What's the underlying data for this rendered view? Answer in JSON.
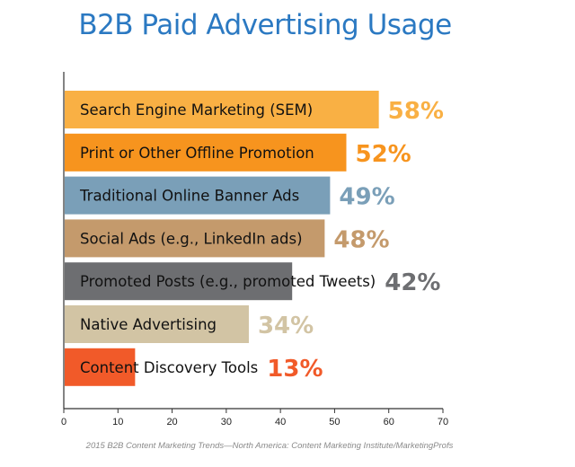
{
  "chart_data": {
    "type": "bar",
    "orientation": "horizontal",
    "title": "B2B Paid Advertising Usage",
    "categories": [
      "Search Engine Marketing (SEM)",
      "Print or Other Offline Promotion",
      "Traditional Online Banner Ads",
      "Social Ads (e.g., LinkedIn ads)",
      "Promoted Posts (e.g., promoted Tweets)",
      "Native Advertising",
      "Content Discovery Tools"
    ],
    "values": [
      58,
      52,
      49,
      48,
      42,
      34,
      13
    ],
    "value_labels": [
      "58%",
      "52%",
      "49%",
      "48%",
      "42%",
      "34%",
      "13%"
    ],
    "colors": [
      "#f9b044",
      "#f7941e",
      "#7a9fb8",
      "#c49a6c",
      "#6d6e71",
      "#d2c4a4",
      "#f15a29"
    ],
    "label_colors": [
      "#f9b044",
      "#f7941e",
      "#7a9fb8",
      "#c49a6c",
      "#6d6e71",
      "#d2c4a4",
      "#f15a29"
    ],
    "xlim": [
      0,
      70
    ],
    "xticks": [
      0,
      10,
      20,
      30,
      40,
      50,
      60,
      70
    ],
    "grid": false,
    "legend": "none"
  },
  "source": "2015 B2B Content Marketing Trends—North America: Content Marketing Institute/MarketingProfs"
}
